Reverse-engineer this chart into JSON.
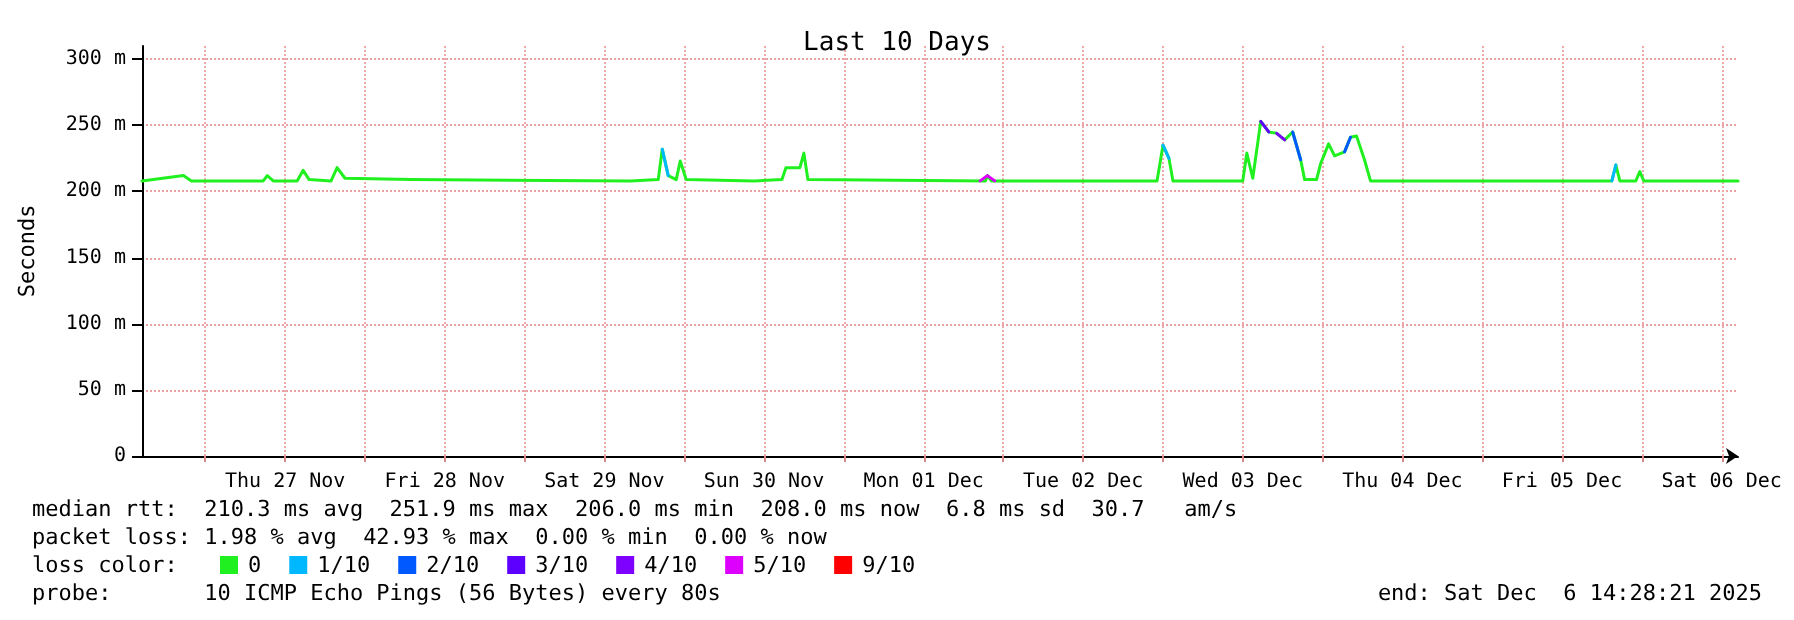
{
  "chart_data": {
    "type": "line",
    "title": "Last 10 Days",
    "ylabel": "Seconds",
    "xlim": [
      "2025-11-26T14:28",
      "2025-12-06T14:28"
    ],
    "xticks": [
      {
        "value": "2025-11-27T00:00",
        "label": null
      },
      {
        "value": "2025-11-27T12:00",
        "label": "Thu 27 Nov"
      },
      {
        "value": "2025-11-28T00:00",
        "label": null
      },
      {
        "value": "2025-11-28T12:00",
        "label": "Fri 28 Nov"
      },
      {
        "value": "2025-11-29T00:00",
        "label": null
      },
      {
        "value": "2025-11-29T12:00",
        "label": "Sat 29 Nov"
      },
      {
        "value": "2025-11-30T00:00",
        "label": null
      },
      {
        "value": "2025-11-30T12:00",
        "label": "Sun 30 Nov"
      },
      {
        "value": "2025-12-01T00:00",
        "label": null
      },
      {
        "value": "2025-12-01T12:00",
        "label": "Mon 01 Dec"
      },
      {
        "value": "2025-12-02T00:00",
        "label": null
      },
      {
        "value": "2025-12-02T12:00",
        "label": "Tue 02 Dec"
      },
      {
        "value": "2025-12-03T00:00",
        "label": null
      },
      {
        "value": "2025-12-03T12:00",
        "label": "Wed 03 Dec"
      },
      {
        "value": "2025-12-04T00:00",
        "label": null
      },
      {
        "value": "2025-12-04T12:00",
        "label": "Thu 04 Dec"
      },
      {
        "value": "2025-12-05T00:00",
        "label": null
      },
      {
        "value": "2025-12-05T12:00",
        "label": "Fri 05 Dec"
      },
      {
        "value": "2025-12-06T00:00",
        "label": null
      },
      {
        "value": "2025-12-06T12:00",
        "label": "Sat 06 Dec"
      }
    ],
    "ylim": [
      0,
      310
    ],
    "yticks": [
      {
        "value": 0,
        "label": "0"
      },
      {
        "value": 50,
        "label": "50 m"
      },
      {
        "value": 100,
        "label": "100 m"
      },
      {
        "value": 150,
        "label": "150 m"
      },
      {
        "value": 200,
        "label": "200 m"
      },
      {
        "value": 250,
        "label": "250 m"
      },
      {
        "value": 300,
        "label": "300 m"
      }
    ],
    "grid": true,
    "legend": "bottom left",
    "legend_title": "loss color:",
    "marker": "none",
    "line_style": "solid",
    "series": [
      {
        "name": "0",
        "color": "#20f020",
        "x": [
          "2025-11-26T14:28",
          "2025-11-26T20:42",
          "2025-11-26T21:54",
          "2025-11-27T08:42",
          "2025-11-27T09:18",
          "2025-11-27T10:12",
          "2025-11-27T13:48",
          "2025-11-27T14:42",
          "2025-11-27T15:36",
          "2025-11-27T18:54",
          "2025-11-27T19:48",
          "2025-11-27T21:00",
          "2025-11-28T06:54",
          "2025-11-29T15:54",
          "2025-11-29T20:06",
          "2025-11-29T20:42",
          "2025-11-29T21:36",
          "2025-11-29T22:48",
          "2025-11-29T23:24",
          "2025-11-30T00:18",
          "2025-11-30T10:30",
          "2025-11-30T14:42",
          "2025-11-30T15:18",
          "2025-11-30T17:24",
          "2025-11-30T18:00",
          "2025-11-30T18:36",
          "2025-12-01T21:18",
          "2025-12-01T21:36",
          "2025-12-01T22:12",
          "2025-12-02T23:06",
          "2025-12-03T00:00",
          "2025-12-03T00:54",
          "2025-12-03T01:30",
          "2025-12-03T12:00",
          "2025-12-03T12:36",
          "2025-12-03T13:30",
          "2025-12-03T14:42",
          "2025-12-03T15:54",
          "2025-12-03T17:06",
          "2025-12-03T18:18",
          "2025-12-03T19:30",
          "2025-12-03T20:42",
          "2025-12-03T21:18",
          "2025-12-03T23:06",
          "2025-12-03T23:42",
          "2025-12-04T00:54",
          "2025-12-04T01:48",
          "2025-12-04T03:18",
          "2025-12-04T04:12",
          "2025-12-04T05:06",
          "2025-12-04T06:18",
          "2025-12-04T07:12",
          "2025-12-05T19:30",
          "2025-12-05T20:06",
          "2025-12-05T20:42",
          "2025-12-05T23:06",
          "2025-12-05T23:42",
          "2025-12-06T00:18",
          "2025-12-06T14:28"
        ],
        "values": [
          208,
          212,
          208,
          208,
          212,
          208,
          208,
          216,
          209,
          208,
          218,
          210,
          209,
          208,
          209,
          232,
          212,
          209,
          223,
          209,
          208,
          209,
          218,
          218,
          229,
          209,
          208,
          212,
          208,
          208,
          235,
          225,
          208,
          208,
          229,
          210,
          253,
          245,
          244,
          239,
          245,
          224,
          209,
          209,
          221,
          236,
          227,
          230,
          241,
          242,
          224,
          208,
          208,
          220,
          208,
          208,
          215,
          208,
          208
        ]
      },
      {
        "name": "1/10",
        "color": "#00b8ff",
        "x": [
          "2025-11-29T20:42",
          "2025-11-29T21:36",
          "2025-11-29T22:00",
          "2025-12-03T00:00",
          "2025-12-03T00:54",
          "2025-12-04T12:00",
          "2025-12-05T19:30",
          "2025-12-05T20:06"
        ],
        "values": [
          232,
          212,
          null,
          235,
          225,
          null,
          208,
          220
        ]
      },
      {
        "name": "2/10",
        "color": "#0059ff",
        "x": [
          "2025-12-03T19:30",
          "2025-12-03T20:42",
          "2025-12-03T22:00",
          "2025-12-04T03:18",
          "2025-12-04T04:12"
        ],
        "values": [
          245,
          224,
          null,
          230,
          241
        ]
      },
      {
        "name": "3/10",
        "color": "#5e00ff",
        "x": [
          "2025-12-03T14:42",
          "2025-12-03T15:54"
        ],
        "values": [
          253,
          245
        ]
      },
      {
        "name": "4/10",
        "color": "#7e00ff",
        "x": [
          "2025-12-03T17:06",
          "2025-12-03T18:18"
        ],
        "values": [
          244,
          239
        ]
      },
      {
        "name": "5/10",
        "color": "#dd00ff",
        "x": [
          "2025-12-01T20:30",
          "2025-12-01T21:36",
          "2025-12-01T22:42"
        ],
        "values": [
          208,
          212,
          208
        ]
      },
      {
        "name": "9/10",
        "color": "#ff0000"
      }
    ],
    "annotations": [
      "median rtt:  210.3 ms avg  251.9 ms max  206.0 ms min  208.0 ms now  6.8 ms sd  30.7   am/s",
      "packet loss: 1.98 % avg  42.93 % max  0.00 % min  0.00 % now",
      "probe:       10 ICMP Echo Pings (56 Bytes) every 80s",
      "end: Sat Dec  6 14:28:21 2025"
    ]
  }
}
